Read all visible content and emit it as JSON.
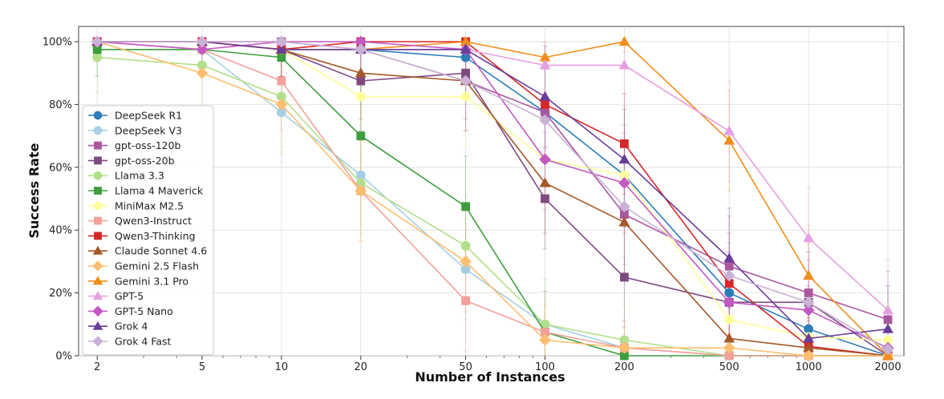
{
  "chart_data": {
    "type": "line",
    "xlabel": "Number of Instances",
    "ylabel": "Success Rate",
    "x_scale": "log",
    "x": [
      2,
      5,
      10,
      20,
      50,
      100,
      200,
      500,
      1000,
      2000
    ],
    "x_tick_labels": [
      "2",
      "5",
      "10",
      "20",
      "50",
      "100",
      "200",
      "500",
      "1000",
      "2000"
    ],
    "ylim": [
      0,
      100
    ],
    "y_ticks": [
      0,
      20,
      40,
      60,
      80,
      100
    ],
    "y_tick_labels": [
      "0%",
      "20%",
      "40%",
      "60%",
      "80%",
      "100%"
    ],
    "grid": true,
    "legend_position": "left",
    "error_bars": true,
    "series": [
      {
        "name": "DeepSeek R1",
        "color": "#2e7db8",
        "marker": "circle",
        "values": [
          100,
          100,
          97.5,
          97.5,
          95,
          77.5,
          57.5,
          20,
          8.5,
          0
        ]
      },
      {
        "name": "DeepSeek V3",
        "color": "#a6cfe3",
        "marker": "circle",
        "values": [
          100,
          97.5,
          77.5,
          57.5,
          27.5,
          10,
          2.5,
          0,
          0,
          0
        ]
      },
      {
        "name": "gpt-oss-120b",
        "color": "#a9589e",
        "marker": "square",
        "values": [
          100,
          100,
          100,
          97.5,
          87.5,
          77.5,
          45,
          28.5,
          20,
          11.5
        ]
      },
      {
        "name": "gpt-oss-20b",
        "color": "#7d4a80",
        "marker": "square",
        "values": [
          100,
          100,
          97.5,
          87.5,
          90,
          50,
          25,
          17,
          17,
          0
        ]
      },
      {
        "name": "Llama 3.3",
        "color": "#b2df8a",
        "marker": "circle",
        "values": [
          95,
          92.5,
          82.5,
          55,
          35,
          10,
          5,
          0,
          0,
          0
        ]
      },
      {
        "name": "Llama 4 Maverick",
        "color": "#3d9e3d",
        "marker": "square",
        "values": [
          97.5,
          97.5,
          95,
          70,
          47.5,
          7.5,
          0,
          0,
          0,
          0
        ]
      },
      {
        "name": "MiniMax M2.5",
        "color": "#feff99",
        "marker": "circle",
        "values": [
          100,
          100,
          97.5,
          82.5,
          82.5,
          62.5,
          57.5,
          11.5,
          6,
          5
        ]
      },
      {
        "name": "Qwen3-Instruct",
        "color": "#f4a09a",
        "marker": "square",
        "values": [
          100,
          97.5,
          87.5,
          52.5,
          17.5,
          7.5,
          2.5,
          0,
          0,
          0
        ]
      },
      {
        "name": "Qwen3-Thinking",
        "color": "#d62728",
        "marker": "square",
        "values": [
          100,
          100,
          97.5,
          100,
          100,
          80,
          67.5,
          23,
          3,
          0
        ]
      },
      {
        "name": "Claude Sonnet 4.6",
        "color": "#a5582a",
        "marker": "triangle",
        "values": [
          100,
          100,
          97.5,
          90,
          87.5,
          55,
          42.5,
          5.5,
          2.5,
          0
        ]
      },
      {
        "name": "Gemini 2.5 Flash",
        "color": "#fdbf6f",
        "marker": "diamond",
        "values": [
          100,
          90,
          80,
          52.5,
          30,
          5,
          2.5,
          2.5,
          0,
          0
        ]
      },
      {
        "name": "Gemini 3.1 Pro",
        "color": "#f28e1c",
        "marker": "triangle",
        "values": [
          100,
          100,
          97.5,
          97.5,
          100,
          95,
          100,
          68.5,
          25.5,
          0
        ]
      },
      {
        "name": "GPT-5",
        "color": "#e5a0df",
        "marker": "triangle",
        "values": [
          100,
          100,
          100,
          97.5,
          97.5,
          92.5,
          92.5,
          71.5,
          37.5,
          14.5
        ]
      },
      {
        "name": "GPT-5 Nano",
        "color": "#c359c2",
        "marker": "diamond",
        "values": [
          100,
          97.5,
          100,
          100,
          97.5,
          62.5,
          55,
          17,
          14.5,
          2.5
        ]
      },
      {
        "name": "Grok 4",
        "color": "#6a3d9a",
        "marker": "triangle",
        "values": [
          100,
          100,
          97.5,
          97.5,
          97.5,
          82.5,
          62.5,
          31,
          5.5,
          8.5
        ]
      },
      {
        "name": "Grok 4 Fast",
        "color": "#cab2d6",
        "marker": "diamond",
        "values": [
          100,
          100,
          100,
          97.5,
          87.5,
          75,
          47.5,
          25.5,
          17,
          2
        ]
      }
    ]
  }
}
